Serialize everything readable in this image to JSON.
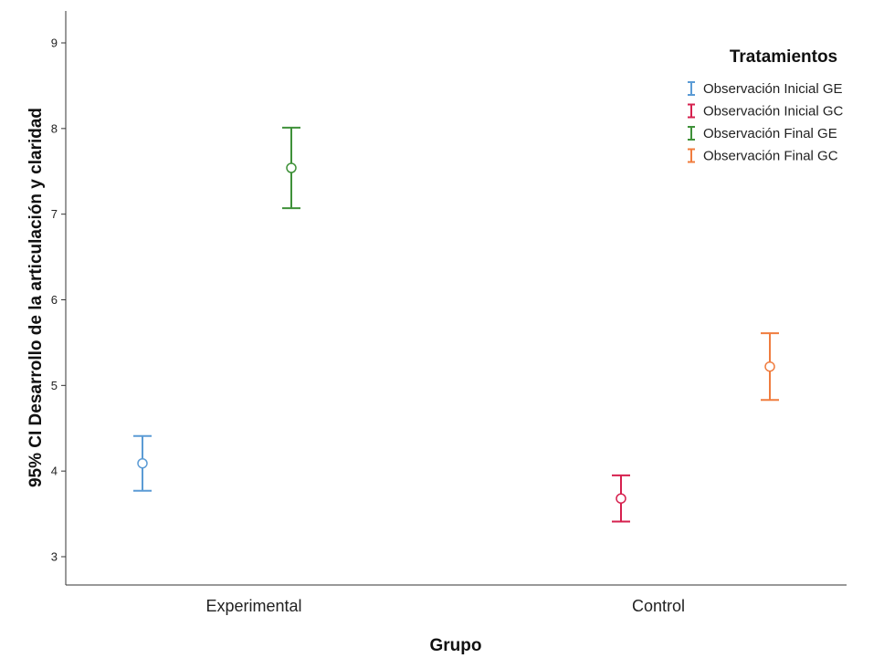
{
  "chart_data": {
    "type": "errorbar",
    "title": "",
    "xlabel": "Grupo",
    "ylabel": "95% CI Desarrollo de la articulación y claridad",
    "ylim": [
      2.7,
      9.35
    ],
    "yticks": [
      3,
      4,
      5,
      6,
      7,
      8,
      9
    ],
    "categories": [
      "Experimental",
      "Control"
    ],
    "grid": false,
    "legend": {
      "title": "Tratamientos",
      "placement": "top-right"
    },
    "series": [
      {
        "name": "Observación Inicial GE",
        "color": "#5b9bd5",
        "points": [
          {
            "category": "Experimental",
            "mean": 4.09,
            "lower": 3.77,
            "upper": 4.41
          }
        ]
      },
      {
        "name": "Observación Inicial GC",
        "color": "#d6204e",
        "points": [
          {
            "category": "Control",
            "mean": 3.68,
            "lower": 3.41,
            "upper": 3.95
          }
        ]
      },
      {
        "name": "Observación Final GE",
        "color": "#3f9139",
        "points": [
          {
            "category": "Experimental",
            "mean": 7.54,
            "lower": 7.07,
            "upper": 8.01
          }
        ]
      },
      {
        "name": "Observación Final GC",
        "color": "#f07c3e",
        "points": [
          {
            "category": "Control",
            "mean": 5.22,
            "lower": 4.83,
            "upper": 5.61
          }
        ]
      }
    ]
  }
}
